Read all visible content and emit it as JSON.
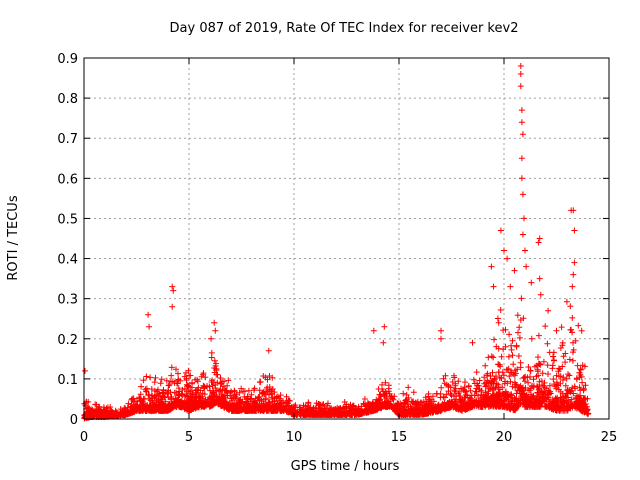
{
  "chart_data": {
    "type": "scatter",
    "title": "Day 087 of 2019, Rate Of TEC Index for receiver kev2",
    "xlabel": "GPS time / hours",
    "ylabel": "ROTI / TECUs",
    "xlim": [
      0,
      25
    ],
    "ylim": [
      0,
      0.9
    ],
    "xticks": [
      0,
      5,
      10,
      15,
      20,
      25
    ],
    "yticks": [
      0,
      0.1,
      0.2,
      0.3,
      0.4,
      0.5,
      0.6,
      0.7,
      0.8,
      0.9
    ],
    "grid": true,
    "marker": "+",
    "color": "#ff0000",
    "series": [
      {
        "name": "ROTI",
        "envelope": {
          "x": [
            0.0,
            0.3,
            1.0,
            2.0,
            2.5,
            3.0,
            3.5,
            4.0,
            4.3,
            4.6,
            5.0,
            5.5,
            6.0,
            6.3,
            6.6,
            7.0,
            8.0,
            8.8,
            9.5,
            10.0,
            11.0,
            12.0,
            13.0,
            13.8,
            14.3,
            14.6,
            15.0,
            15.4,
            16.0,
            17.0,
            17.5,
            18.0,
            18.5,
            19.0,
            19.5,
            20.0,
            20.5,
            20.8,
            21.0,
            21.5,
            22.0,
            22.5,
            23.0,
            23.3,
            23.7,
            24.0
          ],
          "high": [
            0.08,
            0.04,
            0.03,
            0.03,
            0.07,
            0.12,
            0.1,
            0.12,
            0.17,
            0.1,
            0.15,
            0.1,
            0.16,
            0.2,
            0.15,
            0.1,
            0.07,
            0.13,
            0.06,
            0.05,
            0.04,
            0.04,
            0.05,
            0.06,
            0.1,
            0.09,
            0.05,
            0.08,
            0.06,
            0.09,
            0.14,
            0.1,
            0.14,
            0.12,
            0.25,
            0.3,
            0.24,
            0.42,
            0.2,
            0.22,
            0.26,
            0.18,
            0.3,
            0.35,
            0.2,
            0.12
          ],
          "low": [
            0.0,
            0.005,
            0.005,
            0.01,
            0.02,
            0.02,
            0.02,
            0.02,
            0.03,
            0.03,
            0.02,
            0.03,
            0.03,
            0.04,
            0.03,
            0.02,
            0.02,
            0.02,
            0.02,
            0.01,
            0.01,
            0.01,
            0.01,
            0.02,
            0.03,
            0.03,
            0.01,
            0.01,
            0.01,
            0.02,
            0.03,
            0.02,
            0.03,
            0.03,
            0.03,
            0.03,
            0.02,
            0.04,
            0.03,
            0.03,
            0.03,
            0.02,
            0.02,
            0.03,
            0.02,
            0.01
          ]
        },
        "peaks": [
          [
            0.05,
            0.12
          ],
          [
            3.05,
            0.26
          ],
          [
            3.1,
            0.23
          ],
          [
            4.2,
            0.33
          ],
          [
            4.25,
            0.32
          ],
          [
            4.2,
            0.28
          ],
          [
            6.2,
            0.24
          ],
          [
            6.25,
            0.22
          ],
          [
            6.05,
            0.2
          ],
          [
            8.8,
            0.17
          ],
          [
            13.8,
            0.22
          ],
          [
            14.3,
            0.23
          ],
          [
            14.25,
            0.19
          ],
          [
            17.0,
            0.22
          ],
          [
            17.0,
            0.2
          ],
          [
            18.5,
            0.19
          ],
          [
            19.4,
            0.38
          ],
          [
            19.5,
            0.33
          ],
          [
            19.85,
            0.47
          ],
          [
            20.0,
            0.42
          ],
          [
            20.15,
            0.4
          ],
          [
            20.3,
            0.33
          ],
          [
            20.5,
            0.37
          ],
          [
            20.8,
            0.88
          ],
          [
            20.8,
            0.86
          ],
          [
            20.8,
            0.83
          ],
          [
            20.85,
            0.77
          ],
          [
            20.85,
            0.74
          ],
          [
            20.9,
            0.71
          ],
          [
            20.85,
            0.65
          ],
          [
            20.85,
            0.6
          ],
          [
            20.9,
            0.56
          ],
          [
            20.95,
            0.5
          ],
          [
            20.9,
            0.46
          ],
          [
            21.0,
            0.42
          ],
          [
            21.05,
            0.38
          ],
          [
            21.3,
            0.34
          ],
          [
            21.7,
            0.45
          ],
          [
            21.65,
            0.44
          ],
          [
            21.7,
            0.35
          ],
          [
            21.75,
            0.31
          ],
          [
            23.2,
            0.52
          ],
          [
            23.3,
            0.52
          ],
          [
            23.35,
            0.47
          ],
          [
            23.35,
            0.39
          ],
          [
            23.3,
            0.36
          ],
          [
            23.25,
            0.33
          ],
          [
            23.7,
            0.22
          ],
          [
            22.1,
            0.27
          ],
          [
            22.5,
            0.22
          ]
        ]
      }
    ]
  }
}
